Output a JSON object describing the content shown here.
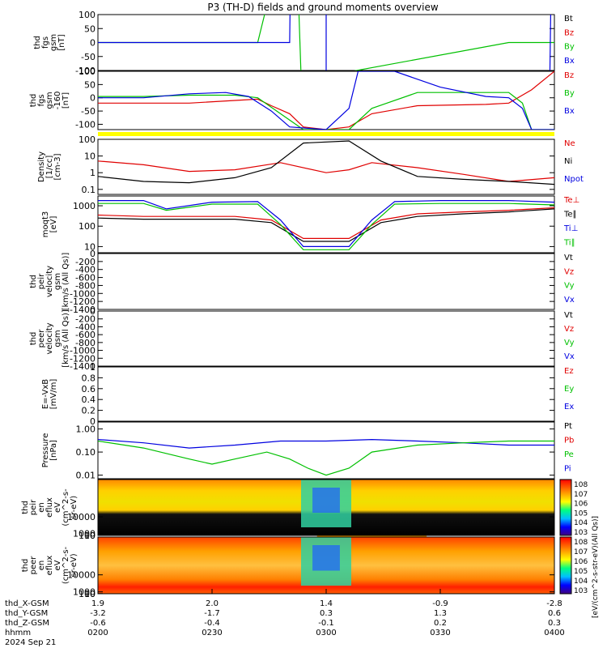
{
  "title": "P3 (TH-D) fields and ground moments overview",
  "date_label": "2024 Sep 21",
  "colors": {
    "red": "#e00000",
    "green": "#00c000",
    "blue": "#0000e0",
    "black": "#000000",
    "yellow": "#ffff00",
    "ephem_flag": "#ffff00"
  },
  "chart_data": [
    {
      "id": "fgs",
      "type": "line",
      "ylabel": [
        "thd",
        "fgs",
        "gsm",
        "[nT]"
      ],
      "ylim": [
        -100,
        100
      ],
      "yticks": [
        100,
        50,
        0,
        -50,
        -100
      ],
      "legend": [
        "Bt",
        "Bz",
        "By",
        "Bx"
      ],
      "legend_colors": [
        "black",
        "red",
        "green",
        "blue"
      ],
      "series": [
        {
          "name": "By",
          "color": "green",
          "x": [
            0.0,
            0.35,
            0.368,
            0.4,
            0.44,
            0.445,
            0.5,
            0.9,
            1.0
          ],
          "y": [
            0,
            0,
            120,
            120,
            120,
            -120,
            -120,
            0,
            0
          ]
        },
        {
          "name": "Bx",
          "color": "blue",
          "x": [
            0.0,
            0.42,
            0.421,
            0.5,
            0.5,
            0.99,
            0.992
          ],
          "y": [
            0,
            0,
            120,
            120,
            -120,
            -120,
            120
          ]
        }
      ]
    },
    {
      "id": "fgs_zoom",
      "type": "line",
      "ylabel": [
        "thd",
        "fgs",
        "gsm",
        "-160",
        "[nT]"
      ],
      "ylim": [
        -120,
        100
      ],
      "yticks": [
        100,
        50,
        0,
        -50,
        -100
      ],
      "legend": [
        "Bz",
        "By",
        "Bx"
      ],
      "legend_colors": [
        "red",
        "green",
        "blue"
      ],
      "series": [
        {
          "name": "Bz",
          "color": "red",
          "x": [
            0.0,
            0.2,
            0.35,
            0.38,
            0.42,
            0.45,
            0.5,
            0.55,
            0.6,
            0.7,
            0.85,
            0.9,
            0.95,
            1.0
          ],
          "y": [
            -20,
            -20,
            -5,
            -30,
            -60,
            -110,
            -120,
            -110,
            -60,
            -30,
            -25,
            -20,
            30,
            100
          ]
        },
        {
          "name": "By",
          "color": "green",
          "x": [
            0.0,
            0.1,
            0.2,
            0.3,
            0.35,
            0.4,
            0.45,
            0.5,
            0.55,
            0.6,
            0.7,
            0.8,
            0.9,
            0.93,
            0.95,
            1.0
          ],
          "y": [
            5,
            5,
            10,
            10,
            0,
            -60,
            -120,
            -120,
            -120,
            -40,
            20,
            20,
            20,
            -20,
            -120,
            -120
          ]
        },
        {
          "name": "Bx",
          "color": "blue",
          "x": [
            0.0,
            0.1,
            0.2,
            0.28,
            0.33,
            0.38,
            0.42,
            0.5,
            0.55,
            0.57,
            0.65,
            0.75,
            0.85,
            0.9,
            0.93,
            0.95,
            1.0
          ],
          "y": [
            0,
            0,
            15,
            20,
            5,
            -50,
            -110,
            -120,
            -40,
            100,
            100,
            40,
            5,
            0,
            -40,
            -120,
            -120
          ]
        }
      ]
    },
    {
      "id": "density",
      "type": "line",
      "log": true,
      "ylabel": [
        "Density",
        "[1/cc]",
        "[cm-3]"
      ],
      "ylim": [
        0.05,
        100
      ],
      "yticks": [
        100,
        10,
        1,
        0.1
      ],
      "legend": [
        "Ne",
        "Ni",
        "Npot"
      ],
      "legend_colors": [
        "red",
        "black",
        "blue"
      ],
      "series": [
        {
          "name": "Ne",
          "color": "red",
          "x": [
            0.0,
            0.1,
            0.2,
            0.3,
            0.4,
            0.5,
            0.55,
            0.6,
            0.7,
            0.8,
            0.9,
            1.0
          ],
          "y": [
            5,
            3,
            1.2,
            1.5,
            4,
            1,
            1.5,
            4,
            2,
            0.8,
            0.3,
            0.5
          ]
        },
        {
          "name": "Ni",
          "color": "black",
          "x": [
            0.0,
            0.1,
            0.2,
            0.3,
            0.38,
            0.45,
            0.55,
            0.62,
            0.7,
            0.8,
            0.9,
            1.0
          ],
          "y": [
            0.6,
            0.3,
            0.25,
            0.5,
            2,
            60,
            80,
            5,
            0.6,
            0.4,
            0.3,
            0.2
          ]
        }
      ]
    },
    {
      "id": "temperature",
      "type": "line",
      "log": true,
      "ylabel": [
        "moqt3",
        "[eV]"
      ],
      "ylim": [
        5,
        3000
      ],
      "yticks": [
        1000,
        100,
        10
      ],
      "legend": [
        "Te⊥",
        "Te∥",
        "Ti⊥",
        "Ti∥"
      ],
      "legend_colors": [
        "red",
        "black",
        "blue",
        "green"
      ],
      "series": [
        {
          "name": "Te⊥",
          "color": "red",
          "x": [
            0.0,
            0.1,
            0.3,
            0.38,
            0.45,
            0.55,
            0.62,
            0.7,
            0.8,
            0.9,
            1.0
          ],
          "y": [
            350,
            300,
            300,
            200,
            25,
            25,
            200,
            400,
            500,
            600,
            800
          ]
        },
        {
          "name": "Te∥",
          "color": "black",
          "x": [
            0.0,
            0.1,
            0.3,
            0.38,
            0.45,
            0.55,
            0.62,
            0.7,
            0.8,
            0.9,
            1.0
          ],
          "y": [
            250,
            220,
            220,
            150,
            18,
            18,
            150,
            300,
            400,
            500,
            700
          ]
        },
        {
          "name": "Ti⊥",
          "color": "blue",
          "x": [
            0.0,
            0.1,
            0.15,
            0.25,
            0.35,
            0.4,
            0.45,
            0.55,
            0.6,
            0.65,
            0.75,
            0.9,
            1.0
          ],
          "y": [
            1800,
            1800,
            700,
            1500,
            1600,
            200,
            10,
            10,
            200,
            1600,
            1800,
            1800,
            1500
          ]
        },
        {
          "name": "Ti∥",
          "color": "green",
          "x": [
            0.0,
            0.1,
            0.15,
            0.25,
            0.35,
            0.4,
            0.45,
            0.55,
            0.6,
            0.65,
            0.75,
            0.9,
            1.0
          ],
          "y": [
            1300,
            1300,
            600,
            1200,
            1200,
            120,
            7,
            7,
            120,
            1200,
            1300,
            1300,
            1100
          ]
        }
      ]
    },
    {
      "id": "peir_velocity",
      "type": "line",
      "ylabel": [
        "thd",
        "peir",
        "velocity",
        "gsm",
        "[km/s (All Qs)]"
      ],
      "ylim": [
        -1400,
        0
      ],
      "yticks": [
        0,
        -200,
        -400,
        -600,
        -800,
        -1000,
        -1200,
        -1400
      ],
      "legend": [
        "Vt",
        "Vz",
        "Vy",
        "Vx"
      ],
      "legend_colors": [
        "black",
        "red",
        "green",
        "blue"
      ],
      "series": []
    },
    {
      "id": "peer_velocity",
      "type": "line",
      "ylabel": [
        "thd",
        "peer",
        "velocity",
        "gsm",
        "[km/s (All Qs)]"
      ],
      "ylim": [
        -1400,
        0
      ],
      "yticks": [
        0,
        -200,
        -400,
        -600,
        -800,
        -1000,
        -1200,
        -1400
      ],
      "legend": [
        "Vt",
        "Vz",
        "Vy",
        "Vx"
      ],
      "legend_colors": [
        "black",
        "red",
        "green",
        "blue"
      ],
      "series": []
    },
    {
      "id": "efield",
      "type": "line",
      "ylabel": [
        "E=-VxB",
        "[mV/m]"
      ],
      "ylim": [
        0,
        1
      ],
      "yticks": [
        1.0,
        0.8,
        0.6,
        0.4,
        0.2,
        0.0
      ],
      "legend": [
        "Ez",
        "Ey",
        "Ex"
      ],
      "legend_colors": [
        "red",
        "green",
        "blue"
      ],
      "series": []
    },
    {
      "id": "pressure",
      "type": "line",
      "log": true,
      "ylabel": [
        "Pressure",
        "[nPa]"
      ],
      "ylim": [
        0.007,
        2
      ],
      "yticks": [
        1.0,
        0.1,
        0.01
      ],
      "ytick_labels": [
        "1.00",
        "0.10",
        "0.01"
      ],
      "legend": [
        "Pt",
        "Pb",
        "Pe",
        "Pi"
      ],
      "legend_colors": [
        "black",
        "red",
        "green",
        "blue"
      ],
      "series": [
        {
          "name": "Pi",
          "color": "blue",
          "x": [
            0.0,
            0.1,
            0.2,
            0.3,
            0.4,
            0.5,
            0.6,
            0.7,
            0.8,
            0.9,
            1.0
          ],
          "y": [
            0.35,
            0.25,
            0.15,
            0.2,
            0.3,
            0.3,
            0.35,
            0.3,
            0.25,
            0.2,
            0.2
          ]
        },
        {
          "name": "Pe",
          "color": "green",
          "x": [
            0.0,
            0.1,
            0.2,
            0.25,
            0.3,
            0.37,
            0.42,
            0.46,
            0.5,
            0.55,
            0.6,
            0.7,
            0.8,
            0.9,
            1.0
          ],
          "y": [
            0.3,
            0.15,
            0.05,
            0.03,
            0.05,
            0.1,
            0.05,
            0.02,
            0.01,
            0.02,
            0.1,
            0.2,
            0.25,
            0.3,
            0.3
          ]
        }
      ]
    },
    {
      "id": "peir_eflux",
      "type": "heatmap",
      "ylabel": [
        "thd",
        "peir",
        "en",
        "eflux",
        "eV",
        "(cm^2-s-",
        "sr-eV)"
      ],
      "ylim": [
        5,
        30000
      ],
      "yticks": [
        10000,
        1000,
        100,
        10
      ],
      "colorbar_ticks": [
        "10^8",
        "10^7",
        "10^6",
        "10^5",
        "10^4",
        "10^3"
      ]
    },
    {
      "id": "peer_eflux",
      "type": "heatmap",
      "ylabel": [
        "thd",
        "peer",
        "en",
        "eflux",
        "eV",
        "(cm^2-s-",
        "sr-eV)"
      ],
      "ylim": [
        5,
        30000
      ],
      "yticks": [
        10000,
        1000,
        100,
        10
      ],
      "colorbar_ticks": [
        "10^8",
        "10^7",
        "10^6",
        "10^5",
        "10^4",
        "10^3"
      ]
    }
  ],
  "colorbar_label": "[eV/(cm^2-s-str-eV)(All Qs)]",
  "xaxis": {
    "rows": [
      {
        "label": "thd_X-GSM",
        "values": [
          "1.9",
          "2.0",
          "1.4",
          "-0.9",
          "-2.8"
        ]
      },
      {
        "label": "thd_Y-GSM",
        "values": [
          "-3.2",
          "-1.7",
          "0.3",
          "1.3",
          "0.6"
        ]
      },
      {
        "label": "thd_Z-GSM",
        "values": [
          "-0.6",
          "-0.4",
          "-0.1",
          "0.2",
          "0.3"
        ]
      },
      {
        "label": "hhmm",
        "values": [
          "0200",
          "0230",
          "0300",
          "0330",
          "0400"
        ]
      }
    ]
  }
}
